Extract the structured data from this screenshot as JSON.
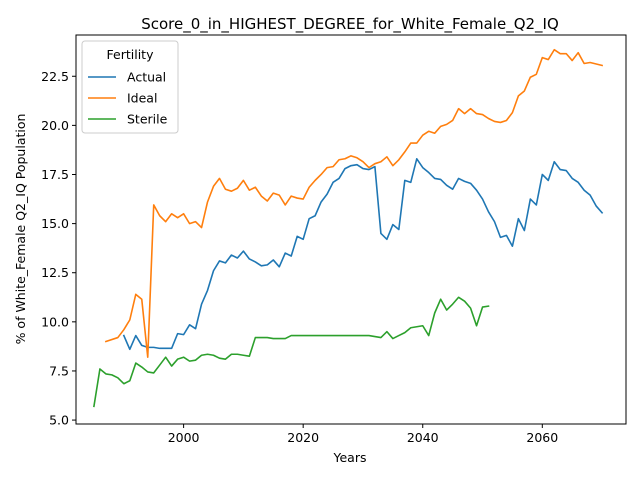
{
  "chart_data": {
    "type": "line",
    "title": "Score_0_in_HIGHEST_DEGREE_for_White_Female_Q2_IQ",
    "xlabel": "Years",
    "ylabel": "% of White_Female Q2_IQ Population",
    "xlim": [
      1982,
      2074
    ],
    "ylim": [
      4.8,
      24.6
    ],
    "xticks": [
      2000,
      2020,
      2040,
      2060
    ],
    "yticks": [
      5.0,
      7.5,
      10.0,
      12.5,
      15.0,
      17.5,
      20.0,
      22.5
    ],
    "xtick_labels": [
      "2000",
      "2020",
      "2040",
      "2060"
    ],
    "ytick_labels": [
      "5.0",
      "7.5",
      "10.0",
      "12.5",
      "15.0",
      "17.5",
      "20.0",
      "22.5"
    ],
    "grid": false,
    "legend": {
      "title": "Fertility",
      "placement": "upper-left"
    },
    "series": [
      {
        "name": "Actual",
        "color": "#1f77b4",
        "x": [
          1990,
          1991,
          1992,
          1993,
          1994,
          1995,
          1996,
          1997,
          1998,
          1999,
          2000,
          2001,
          2002,
          2003,
          2004,
          2005,
          2006,
          2007,
          2008,
          2009,
          2010,
          2011,
          2012,
          2013,
          2014,
          2015,
          2016,
          2017,
          2018,
          2019,
          2020,
          2021,
          2022,
          2023,
          2024,
          2025,
          2026,
          2027,
          2028,
          2029,
          2030,
          2031,
          2032,
          2033,
          2034,
          2035,
          2036,
          2037,
          2038,
          2039,
          2040,
          2041,
          2042,
          2043,
          2044,
          2045,
          2046,
          2047,
          2048,
          2049,
          2050,
          2051,
          2052,
          2053,
          2054,
          2055,
          2056,
          2057,
          2058,
          2059,
          2060,
          2061,
          2062,
          2063,
          2064,
          2065,
          2066,
          2067,
          2068,
          2069,
          2070
        ],
        "y": [
          9.3,
          8.6,
          9.3,
          8.8,
          8.7,
          8.7,
          8.65,
          8.65,
          8.65,
          9.4,
          9.35,
          9.85,
          9.65,
          10.9,
          11.6,
          12.6,
          13.1,
          13.0,
          13.4,
          13.25,
          13.6,
          13.2,
          13.05,
          12.85,
          12.9,
          13.15,
          12.8,
          13.5,
          13.35,
          14.35,
          14.2,
          15.25,
          15.4,
          16.1,
          16.5,
          17.1,
          17.3,
          17.8,
          17.95,
          18.0,
          17.8,
          17.75,
          17.9,
          14.5,
          14.2,
          14.95,
          14.7,
          17.2,
          17.1,
          18.3,
          17.85,
          17.6,
          17.3,
          17.25,
          16.95,
          16.75,
          17.3,
          17.15,
          17.05,
          16.7,
          16.25,
          15.6,
          15.1,
          14.3,
          14.4,
          13.85,
          15.25,
          14.65,
          16.25,
          15.95,
          17.5,
          17.2,
          18.15,
          17.75,
          17.7,
          17.3,
          17.1,
          16.7,
          16.45,
          15.9,
          15.55
        ]
      },
      {
        "name": "Ideal",
        "color": "#ff7f0e",
        "x": [
          1987,
          1989,
          1990,
          1991,
          1992,
          1993,
          1994,
          1995,
          1996,
          1997,
          1998,
          1999,
          2000,
          2001,
          2002,
          2003,
          2004,
          2005,
          2006,
          2007,
          2008,
          2009,
          2010,
          2011,
          2012,
          2013,
          2014,
          2015,
          2016,
          2017,
          2018,
          2019,
          2020,
          2021,
          2022,
          2023,
          2024,
          2025,
          2026,
          2027,
          2028,
          2029,
          2030,
          2031,
          2032,
          2033,
          2034,
          2035,
          2036,
          2037,
          2038,
          2039,
          2040,
          2041,
          2042,
          2043,
          2044,
          2045,
          2046,
          2047,
          2048,
          2049,
          2050,
          2051,
          2052,
          2053,
          2054,
          2055,
          2056,
          2057,
          2058,
          2059,
          2060,
          2061,
          2062,
          2063,
          2064,
          2065,
          2066,
          2067,
          2068,
          2070
        ],
        "y": [
          9.0,
          9.2,
          9.6,
          10.1,
          11.4,
          11.15,
          8.2,
          15.95,
          15.4,
          15.1,
          15.5,
          15.3,
          15.5,
          15.0,
          15.1,
          14.8,
          16.1,
          16.9,
          17.3,
          16.75,
          16.65,
          16.8,
          17.2,
          16.7,
          16.85,
          16.4,
          16.15,
          16.55,
          16.45,
          15.95,
          16.4,
          16.3,
          16.25,
          16.85,
          17.2,
          17.5,
          17.85,
          17.9,
          18.25,
          18.3,
          18.45,
          18.35,
          18.15,
          17.85,
          18.05,
          18.15,
          18.4,
          17.95,
          18.25,
          18.65,
          19.1,
          19.1,
          19.5,
          19.7,
          19.6,
          19.95,
          20.05,
          20.25,
          20.85,
          20.6,
          20.85,
          20.6,
          20.55,
          20.35,
          20.2,
          20.15,
          20.25,
          20.65,
          21.5,
          21.75,
          22.45,
          22.6,
          23.45,
          23.35,
          23.85,
          23.65,
          23.65,
          23.3,
          23.7,
          23.15,
          23.2,
          23.05
        ]
      },
      {
        "name": "Sterile",
        "color": "#2ca02c",
        "x": [
          1985,
          1986,
          1987,
          1988,
          1989,
          1990,
          1991,
          1992,
          1993,
          1994,
          1995,
          1996,
          1997,
          1998,
          1999,
          2000,
          2001,
          2002,
          2003,
          2004,
          2005,
          2006,
          2007,
          2008,
          2009,
          2010,
          2011,
          2012,
          2013,
          2014,
          2015,
          2016,
          2017,
          2018,
          2019,
          2020,
          2021,
          2022,
          2023,
          2024,
          2025,
          2026,
          2027,
          2028,
          2029,
          2030,
          2031,
          2032,
          2033,
          2034,
          2035,
          2036,
          2037,
          2038,
          2039,
          2040,
          2041,
          2042,
          2043,
          2044,
          2045,
          2046,
          2047,
          2048,
          2049,
          2050,
          2051
        ],
        "y": [
          5.7,
          7.6,
          7.35,
          7.3,
          7.15,
          6.85,
          7.0,
          7.9,
          7.7,
          7.45,
          7.4,
          7.8,
          8.2,
          7.75,
          8.1,
          8.2,
          8.0,
          8.05,
          8.3,
          8.35,
          8.3,
          8.15,
          8.1,
          8.35,
          8.35,
          8.3,
          8.25,
          9.2,
          9.2,
          9.2,
          9.15,
          9.15,
          9.15,
          9.3,
          9.3,
          9.3,
          9.3,
          9.3,
          9.3,
          9.3,
          9.3,
          9.3,
          9.3,
          9.3,
          9.3,
          9.3,
          9.3,
          9.25,
          9.2,
          9.5,
          9.15,
          9.3,
          9.45,
          9.7,
          9.75,
          9.8,
          9.3,
          10.45,
          11.15,
          10.6,
          10.9,
          11.25,
          11.05,
          10.7,
          9.8,
          10.75,
          10.8
        ]
      }
    ]
  }
}
